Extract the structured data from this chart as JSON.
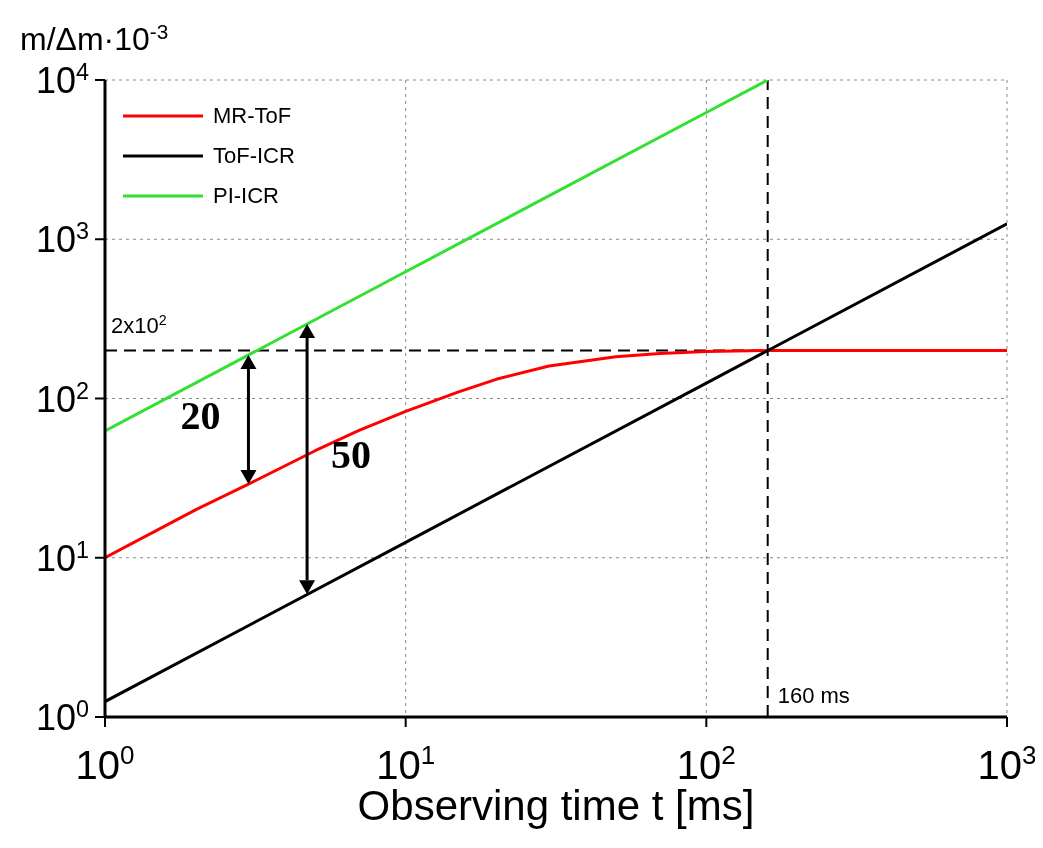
{
  "chart_data": {
    "type": "line",
    "xlabel": "Observing time t [ms]",
    "ylabel": "m/Δm·10$^{-3}$",
    "log": "xy",
    "xlim": [
      1,
      1000
    ],
    "xticks": [
      {
        "value": 1,
        "label": "10$^{0}$"
      },
      {
        "value": 10,
        "label": "10$^{1}$"
      },
      {
        "value": 100,
        "label": "10$^{2}$"
      },
      {
        "value": 1000,
        "label": "10$^{3}$"
      }
    ],
    "ylim": [
      1,
      10000
    ],
    "yticks": [
      {
        "value": 1,
        "label": "10$^{0}$"
      },
      {
        "value": 10,
        "label": "10$^{1}$"
      },
      {
        "value": 100,
        "label": "10$^{2}$"
      },
      {
        "value": 1000,
        "label": "10$^{3}$"
      },
      {
        "value": 10000,
        "label": "10$^{4}$"
      }
    ],
    "grid": true,
    "legend": "top left",
    "line_style": "solid",
    "series": [
      {
        "name": "MR-ToF",
        "color": "#ff0000",
        "x": [
          1,
          2,
          3,
          5,
          7,
          10,
          15,
          20,
          30,
          50,
          70,
          100,
          160,
          1000
        ],
        "values": [
          10,
          20,
          29,
          47,
          63,
          83,
          110,
          132,
          160,
          183,
          192,
          197,
          200,
          200
        ]
      },
      {
        "name": "ToF-ICR",
        "color": "#000000",
        "x": [
          1,
          10,
          100,
          1000
        ],
        "values": [
          1.25,
          12.5,
          125,
          1250
        ]
      },
      {
        "name": "PI-ICR",
        "color": "#33e033",
        "x": [
          1,
          10,
          100,
          160
        ],
        "values": [
          62.5,
          625,
          6250,
          10000
        ]
      }
    ],
    "ref_lines": [
      {
        "axis": "y",
        "value": 200,
        "label": "2x10$^{2}$",
        "color": "#000000",
        "line_style": "dashed"
      },
      {
        "axis": "x",
        "value": 160,
        "label": "160 ms",
        "color": "#000000",
        "line_style": "dashed"
      }
    ],
    "annotations": [
      {
        "text": "20",
        "x": 3,
        "y": 29
      },
      {
        "text": "50",
        "x": 4.7,
        "y": 5.9
      }
    ]
  }
}
